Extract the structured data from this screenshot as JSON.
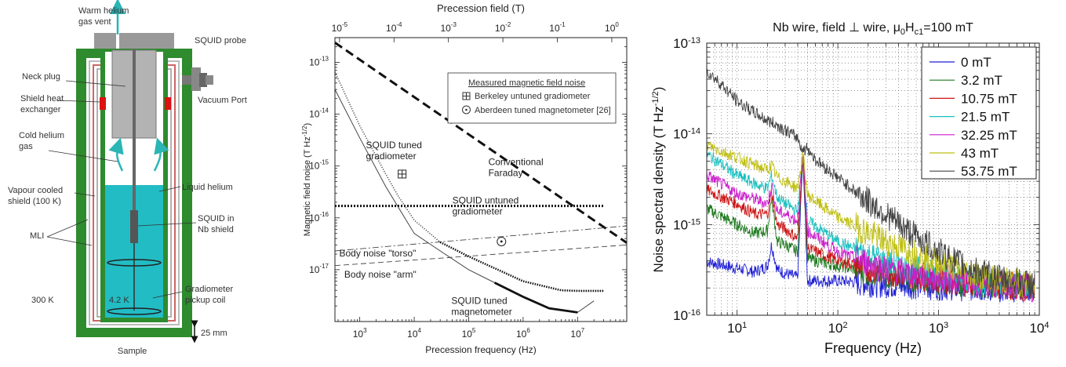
{
  "apparatus": {
    "labels": {
      "vent": [
        "Warm helium",
        "gas vent"
      ],
      "probe": "SQUID probe",
      "neck_plug": "Neck plug",
      "vacuum_port": "Vacuum Port",
      "shield_hx": [
        "Shield heat",
        "exchanger"
      ],
      "cold_gas": [
        "Cold helium",
        "gas"
      ],
      "liquid_he": "Liquid helium",
      "vapour_shield": [
        "Vapour cooled",
        "shield (100 K)"
      ],
      "squid_in_nb": [
        "SQUID in",
        "Nb shield"
      ],
      "mli": "MLI",
      "gradiometer": [
        "Gradiometer",
        "pickup coil"
      ],
      "t300": "300 K",
      "t42": "4.2 K",
      "scale": "25 mm",
      "sample": "Sample"
    },
    "colors": {
      "outer": "#2e8b2e",
      "liquid": "#22bcc4",
      "probe": "#999999",
      "heater": "#dd1111",
      "arrow": "#2bb5b5"
    }
  },
  "chart_data": [
    {
      "type": "line",
      "xlabel": "Precession frequency (Hz)",
      "ylabel": "Magnetic field noise (T Hz",
      "ylabel_sup": "-1/2",
      "ylabel_end": ")",
      "top_axis_label": "Precession field (T)",
      "x_scale": "log",
      "y_scale": "log",
      "xlim": [
        350,
        80000000
      ],
      "ylim": [
        1e-18,
        3e-13
      ],
      "x_ticks": [
        {
          "v": 1000,
          "t": "10"
        },
        {
          "v": 10000,
          "t": "10"
        },
        {
          "v": 100000,
          "t": "10"
        },
        {
          "v": 1000000,
          "t": "10"
        },
        {
          "v": 10000000,
          "t": "10"
        }
      ],
      "x_tick_exps": [
        "3",
        "4",
        "5",
        "6",
        "7"
      ],
      "y_ticks": [
        {
          "v": 1e-17,
          "t": "10"
        },
        {
          "v": 1e-16,
          "t": "10"
        },
        {
          "v": 1e-15,
          "t": "10"
        },
        {
          "v": 1e-14,
          "t": "10"
        },
        {
          "v": 1e-13,
          "t": "10"
        }
      ],
      "y_tick_exps": [
        "-17",
        "-16",
        "-15",
        "-14",
        "-13"
      ],
      "top_ticks": [
        {
          "t": "10",
          "e": "-5"
        },
        {
          "t": "10",
          "e": "-4"
        },
        {
          "t": "10",
          "e": "-3"
        },
        {
          "t": "10",
          "e": "-2"
        },
        {
          "t": "10",
          "e": "-1"
        },
        {
          "t": "10",
          "e": "0"
        }
      ],
      "top_tick_positions_hz": [
        425,
        4250,
        42500,
        425000,
        4250000,
        42500000
      ],
      "legend": {
        "title": "Measured magnetic field noise",
        "entries": [
          "Berkeley untuned gradiometer",
          "Aberdeen tuned magnetometer [26]"
        ],
        "placement": "top-right"
      },
      "series": [
        {
          "style": "dashed-bold",
          "x": [
            350,
            80000000
          ],
          "y": [
            2.4e-13,
            3.3e-17
          ]
        },
        {
          "style": "dotted-thick",
          "x": [
            350,
            30000000
          ],
          "y": [
            1.7e-16,
            1.7e-16
          ]
        },
        {
          "style": "dashdot",
          "x": [
            350,
            80000000
          ],
          "y": [
            2.3e-17,
            7e-17
          ]
        },
        {
          "style": "dashed-thin",
          "x": [
            350,
            80000000
          ],
          "y": [
            1.2e-17,
            3e-17
          ]
        },
        {
          "style": "dotted-fine",
          "x": [
            350,
            1000,
            3000,
            5000,
            10000,
            30000,
            100000,
            1000000,
            5000000,
            10000000,
            30000000
          ],
          "y": [
            6.5e-14,
            6e-15,
            7e-16,
            2.7e-16,
            9e-17,
            3.4e-17,
            1.8e-17,
            6e-18,
            4e-18,
            3.9e-18,
            3.9e-18
          ]
        },
        {
          "style": "solid",
          "x": [
            350,
            1000,
            3000,
            10000,
            30000,
            100000,
            300000,
            1000000,
            3000000,
            10000000,
            20000000
          ],
          "y": [
            3e-14,
            3.5e-15,
            4e-16,
            5e-17,
            2.3e-17,
            1e-17,
            5.6e-18,
            3e-18,
            1.8e-18,
            1.5e-18,
            2.5e-18
          ]
        }
      ],
      "points": [
        {
          "name": "Berkeley untuned gradiometer",
          "marker": "boxplus",
          "x": 6000,
          "y": 7e-16
        },
        {
          "name": "Aberdeen tuned magnetometer [26]",
          "marker": "circledot",
          "x": 400000,
          "y": 3.5e-17
        }
      ],
      "annotations": [
        {
          "lines": [
            "SQUID tuned",
            "gradiometer"
          ],
          "x": 1300,
          "y": 2.2e-15
        },
        {
          "lines": [
            "Conventional",
            "Faraday"
          ],
          "x": 230000,
          "y": 1.05e-15
        },
        {
          "lines": [
            "SQUID untuned",
            "gradiometer"
          ],
          "x": 50000,
          "y": 1.9e-16
        },
        {
          "lines": [
            "Body noise \"torso\""
          ],
          "x": 420,
          "y": 1.8e-17
        },
        {
          "lines": [
            "Body noise \"arm\""
          ],
          "x": 520,
          "y": 7e-18
        },
        {
          "lines": [
            "SQUID tuned",
            "magnetometer"
          ],
          "x": 48000,
          "y": 2.2e-18
        }
      ]
    },
    {
      "type": "line",
      "title": "Nb wire, field ⊥ wire, μ",
      "title_sub0": "0",
      "title_mid": "H",
      "title_sub1": "c1",
      "title_end": "=100 mT",
      "xlabel": "Frequency (Hz)",
      "ylabel": "Noise spectral density (T Hz",
      "ylabel_sup": "-1/2",
      "ylabel_end": ")",
      "x_scale": "log",
      "y_scale": "log",
      "grid": true,
      "xlim": [
        5,
        10000
      ],
      "ylim": [
        1e-16,
        1e-13
      ],
      "x_ticks": [
        {
          "v": 10,
          "t": "10",
          "e": "1"
        },
        {
          "v": 100,
          "t": "10",
          "e": "2"
        },
        {
          "v": 1000,
          "t": "10",
          "e": "3"
        },
        {
          "v": 10000,
          "t": "10",
          "e": "4"
        }
      ],
      "y_ticks": [
        {
          "v": 1e-16,
          "t": "10",
          "e": "-16"
        },
        {
          "v": 1e-15,
          "t": "10",
          "e": "-15"
        },
        {
          "v": 1e-14,
          "t": "10",
          "e": "-14"
        },
        {
          "v": 1e-13,
          "t": "10",
          "e": "-13"
        }
      ],
      "legend_placement": "top-right",
      "series": [
        {
          "name": "0 mT",
          "color": "#1f1fd6",
          "x": [
            5,
            10,
            15,
            20,
            22,
            25,
            30,
            40,
            45,
            50,
            100,
            300,
            1000,
            3000,
            9000
          ],
          "y": [
            3.9e-16,
            3.3e-16,
            3e-16,
            3.5e-16,
            6e-16,
            3.2e-16,
            2.9e-16,
            2.6e-16,
            6e-15,
            2.4e-16,
            2.4e-16,
            2.2e-16,
            2.1e-16,
            2e-16,
            2e-16
          ]
        },
        {
          "name": "3.2 mT",
          "color": "#1e7a1e",
          "x": [
            5,
            10,
            15,
            20,
            22,
            25,
            30,
            40,
            45,
            50,
            100,
            300,
            1000,
            3000,
            9000
          ],
          "y": [
            1.5e-15,
            1e-15,
            8e-16,
            8.5e-16,
            2e-15,
            6.5e-16,
            6e-16,
            5e-16,
            6e-15,
            4.2e-16,
            3.5e-16,
            2.8e-16,
            2.4e-16,
            2.2e-16,
            2e-16
          ]
        },
        {
          "name": "10.75 mT",
          "color": "#cc1515",
          "x": [
            5,
            10,
            15,
            20,
            22,
            25,
            30,
            40,
            45,
            50,
            100,
            300,
            1000,
            3000,
            9000
          ],
          "y": [
            2.4e-15,
            1.7e-15,
            1.3e-15,
            1.3e-15,
            2.3e-15,
            1e-15,
            9e-16,
            7e-16,
            6e-15,
            5.5e-16,
            4e-16,
            3e-16,
            2.5e-16,
            2.2e-16,
            2e-16
          ]
        },
        {
          "name": "21.5 mT",
          "color": "#18bfbf",
          "x": [
            5,
            10,
            15,
            20,
            22,
            25,
            30,
            40,
            45,
            50,
            100,
            300,
            1000,
            3000,
            9000
          ],
          "y": [
            6e-15,
            3.5e-15,
            2.8e-15,
            2.5e-15,
            3.5e-15,
            2e-15,
            1.7e-15,
            1.4e-15,
            6e-15,
            1.1e-15,
            6.5e-16,
            3.8e-16,
            2.8e-16,
            2.3e-16,
            2e-16
          ]
        },
        {
          "name": "32.25 mT",
          "color": "#cc1ccc",
          "x": [
            5,
            10,
            15,
            20,
            22,
            25,
            30,
            40,
            45,
            50,
            100,
            300,
            1000,
            3000,
            9000
          ],
          "y": [
            3.5e-15,
            2.2e-15,
            1.9e-15,
            1.7e-15,
            2.7e-15,
            1.4e-15,
            1.3e-15,
            1.1e-15,
            6e-15,
            8.5e-16,
            5e-16,
            3.2e-16,
            2.6e-16,
            2.2e-16,
            2e-16
          ]
        },
        {
          "name": "43 mT",
          "color": "#bfbf10",
          "x": [
            5,
            10,
            15,
            20,
            22,
            25,
            30,
            40,
            45,
            50,
            100,
            300,
            1000,
            3000,
            9000
          ],
          "y": [
            7.5e-15,
            5.5e-15,
            4.5e-15,
            4e-15,
            4.5e-15,
            3.3e-15,
            3e-15,
            2.5e-15,
            6e-15,
            2.1e-15,
            1.2e-15,
            6.5e-16,
            3.8e-16,
            2.6e-16,
            2.1e-16
          ]
        },
        {
          "name": "53.75 mT",
          "color": "#444444",
          "x": [
            5,
            7,
            10,
            15,
            20,
            25,
            30,
            40,
            45,
            50,
            60,
            80,
            100,
            200,
            300,
            500,
            1000,
            2000,
            3000,
            5000,
            9000
          ],
          "y": [
            5e-14,
            3.5e-14,
            2.3e-14,
            1.7e-14,
            1.4e-14,
            1.25e-14,
            1.1e-14,
            9e-15,
            6.5e-15,
            7e-15,
            5.2e-15,
            4e-15,
            3.3e-15,
            1.8e-15,
            1.3e-15,
            8.5e-16,
            5e-16,
            3.3e-16,
            2.8e-16,
            2.4e-16,
            2.2e-16
          ]
        }
      ]
    }
  ]
}
